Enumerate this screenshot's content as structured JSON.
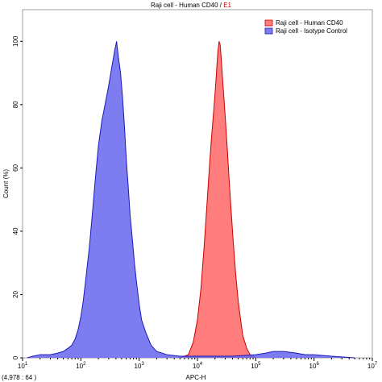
{
  "title": {
    "main": "Raji cell - Human CD40 / ",
    "gate": "E1",
    "gate_color": "#cc0000"
  },
  "coordinate_readout": "(4,978 : 64 )",
  "chart_data": {
    "type": "area",
    "title": "Raji cell - Human CD40 / E1",
    "xlabel": "APC-H",
    "ylabel": "Count (%)",
    "xscale": "log",
    "xlim": [
      10,
      10000000
    ],
    "ylim": [
      0,
      110
    ],
    "x_ticks": [
      {
        "value": 10,
        "base": "10",
        "exp": "1"
      },
      {
        "value": 100,
        "base": "10",
        "exp": "2"
      },
      {
        "value": 1000,
        "base": "10",
        "exp": "3"
      },
      {
        "value": 10000,
        "base": "10",
        "exp": "4"
      },
      {
        "value": 100000,
        "base": "10",
        "exp": "5"
      },
      {
        "value": 1000000,
        "base": "10",
        "exp": "6"
      },
      {
        "value": 10000000,
        "base": "10",
        "exp": "7"
      }
    ],
    "y_ticks": [
      "0",
      "20",
      "40",
      "60",
      "80",
      "100"
    ],
    "legend_position": "top-right",
    "series": [
      {
        "name": "Raji cell - Human CD40",
        "fill": "#ff6666",
        "stroke": "#cc0000",
        "fill_opacity": 0.85,
        "points": [
          [
            5000,
            0
          ],
          [
            7000,
            1
          ],
          [
            8500,
            5
          ],
          [
            10000,
            12
          ],
          [
            11500,
            22
          ],
          [
            13000,
            35
          ],
          [
            14500,
            48
          ],
          [
            16000,
            60
          ],
          [
            17500,
            70
          ],
          [
            19000,
            78
          ],
          [
            20500,
            86
          ],
          [
            21500,
            92
          ],
          [
            22500,
            97
          ],
          [
            23500,
            100
          ],
          [
            24500,
            99
          ],
          [
            25500,
            95
          ],
          [
            27000,
            88
          ],
          [
            29000,
            80
          ],
          [
            31000,
            72
          ],
          [
            33000,
            64
          ],
          [
            35000,
            56
          ],
          [
            38000,
            46
          ],
          [
            41000,
            37
          ],
          [
            45000,
            27
          ],
          [
            50000,
            18
          ],
          [
            55000,
            12
          ],
          [
            60000,
            7
          ],
          [
            70000,
            3
          ],
          [
            80000,
            1
          ],
          [
            100000,
            0
          ]
        ]
      },
      {
        "name": "Raji cell - Isotype Control",
        "fill": "#6666ee",
        "stroke": "#1a1ab8",
        "fill_opacity": 0.85,
        "points": [
          [
            12,
            0
          ],
          [
            15,
            0.5
          ],
          [
            20,
            1
          ],
          [
            30,
            1
          ],
          [
            40,
            1.5
          ],
          [
            50,
            2
          ],
          [
            60,
            3
          ],
          [
            70,
            4
          ],
          [
            80,
            6
          ],
          [
            90,
            9
          ],
          [
            100,
            13
          ],
          [
            110,
            18
          ],
          [
            120,
            24
          ],
          [
            140,
            35
          ],
          [
            160,
            47
          ],
          [
            180,
            58
          ],
          [
            200,
            67
          ],
          [
            230,
            75
          ],
          [
            260,
            80
          ],
          [
            300,
            86
          ],
          [
            340,
            92
          ],
          [
            380,
            97
          ],
          [
            410,
            100
          ],
          [
            440,
            95
          ],
          [
            480,
            90
          ],
          [
            520,
            82
          ],
          [
            560,
            73
          ],
          [
            600,
            63
          ],
          [
            650,
            54
          ],
          [
            700,
            45
          ],
          [
            760,
            38
          ],
          [
            830,
            30
          ],
          [
            900,
            24
          ],
          [
            1000,
            17
          ],
          [
            1100,
            12
          ],
          [
            1300,
            8
          ],
          [
            1600,
            4
          ],
          [
            2000,
            2
          ],
          [
            3000,
            1
          ],
          [
            5000,
            0.5
          ],
          [
            10000,
            0.5
          ],
          [
            20000,
            0.5
          ],
          [
            40000,
            0.5
          ],
          [
            100000,
            1
          ],
          [
            150000,
            1.5
          ],
          [
            200000,
            2
          ],
          [
            300000,
            2
          ],
          [
            500000,
            1.5
          ],
          [
            700000,
            1
          ],
          [
            1000000,
            1
          ],
          [
            2000000,
            0.5
          ],
          [
            5000000,
            0
          ]
        ]
      }
    ]
  }
}
